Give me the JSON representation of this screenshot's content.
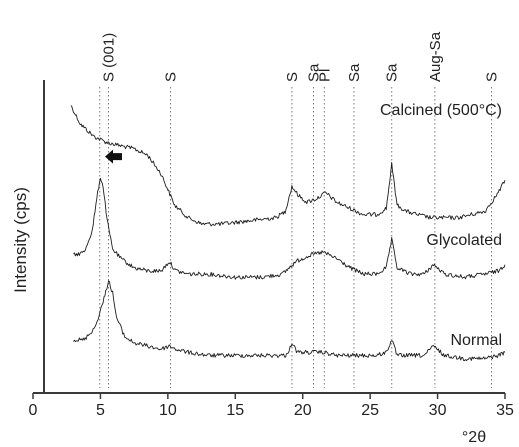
{
  "chart_data": {
    "type": "line",
    "title": "",
    "xlabel": "°2θ",
    "ylabel": "Intensity (cps)",
    "xlim": [
      0,
      35
    ],
    "x_ticks": [
      "0",
      "5",
      "10",
      "15",
      "20",
      "25",
      "30",
      "35"
    ],
    "grid": false,
    "legend": "none",
    "series": [
      {
        "name": "Calcined (500°C)",
        "x": [
          2.8,
          3.5,
          4.5,
          5.5,
          6.5,
          7.5,
          8.5,
          9.5,
          10.5,
          11.5,
          12.5,
          14,
          16,
          18,
          18.7,
          19.2,
          19.7,
          20.3,
          21,
          21.7,
          22.5,
          23.5,
          24.5,
          25.5,
          26.2,
          26.6,
          27,
          27.7,
          28.5,
          29.5,
          30.5,
          31.5,
          32.5,
          33.5,
          34.5,
          35
        ],
        "y": [
          0.92,
          0.86,
          0.82,
          0.8,
          0.79,
          0.78,
          0.76,
          0.7,
          0.6,
          0.56,
          0.54,
          0.54,
          0.55,
          0.56,
          0.58,
          0.66,
          0.63,
          0.61,
          0.62,
          0.64,
          0.61,
          0.59,
          0.57,
          0.57,
          0.59,
          0.73,
          0.6,
          0.58,
          0.57,
          0.56,
          0.56,
          0.56,
          0.57,
          0.58,
          0.64,
          0.68
        ]
      },
      {
        "name": "Glycolated",
        "x": [
          3,
          3.8,
          4.4,
          4.8,
          5.0,
          5.2,
          5.5,
          5.9,
          6.5,
          7.5,
          8.5,
          9.5,
          10.1,
          10.6,
          11.5,
          13,
          15,
          17,
          18.5,
          19.5,
          20.5,
          21.5,
          22.5,
          23.5,
          24.5,
          25.5,
          26.2,
          26.6,
          27,
          28,
          29,
          29.7,
          30.5,
          32,
          33.5,
          34.5,
          35
        ],
        "y": [
          0.44,
          0.45,
          0.52,
          0.64,
          0.69,
          0.66,
          0.55,
          0.46,
          0.43,
          0.4,
          0.39,
          0.39,
          0.42,
          0.39,
          0.38,
          0.38,
          0.37,
          0.37,
          0.38,
          0.42,
          0.44,
          0.45,
          0.43,
          0.4,
          0.38,
          0.38,
          0.4,
          0.49,
          0.4,
          0.38,
          0.38,
          0.41,
          0.38,
          0.37,
          0.38,
          0.39,
          0.41
        ]
      },
      {
        "name": "Normal",
        "x": [
          3,
          3.8,
          4.6,
          5.2,
          5.6,
          5.9,
          6.2,
          6.8,
          7.5,
          8.5,
          9.5,
          10.1,
          10.6,
          11.5,
          13,
          15,
          17,
          18.8,
          19.2,
          19.6,
          20.5,
          21.5,
          22.5,
          23.5,
          24.5,
          25.5,
          26.2,
          26.6,
          27,
          28,
          29,
          29.7,
          30.5,
          32,
          33.5,
          34.5,
          35
        ],
        "y": [
          0.17,
          0.17,
          0.21,
          0.29,
          0.36,
          0.32,
          0.24,
          0.18,
          0.16,
          0.15,
          0.14,
          0.15,
          0.14,
          0.13,
          0.12,
          0.12,
          0.12,
          0.12,
          0.16,
          0.13,
          0.13,
          0.13,
          0.12,
          0.12,
          0.12,
          0.12,
          0.13,
          0.17,
          0.12,
          0.12,
          0.12,
          0.15,
          0.12,
          0.11,
          0.11,
          0.12,
          0.13
        ]
      }
    ],
    "reference_lines": [
      {
        "x": 4.95,
        "label": ""
      },
      {
        "x": 5.6,
        "label": "S (001)"
      },
      {
        "x": 10.2,
        "label": "S"
      },
      {
        "x": 19.2,
        "label": "S"
      },
      {
        "x": 20.8,
        "label": "Sa"
      },
      {
        "x": 21.6,
        "label": "Pl"
      },
      {
        "x": 23.8,
        "label": "Sa"
      },
      {
        "x": 26.6,
        "label": "Sa"
      },
      {
        "x": 29.8,
        "label": "Aug-Sa"
      },
      {
        "x": 34.0,
        "label": "S"
      }
    ],
    "annotations": [
      {
        "type": "arrow",
        "direction": "left",
        "x": 6.6,
        "y": 0.755
      }
    ]
  }
}
